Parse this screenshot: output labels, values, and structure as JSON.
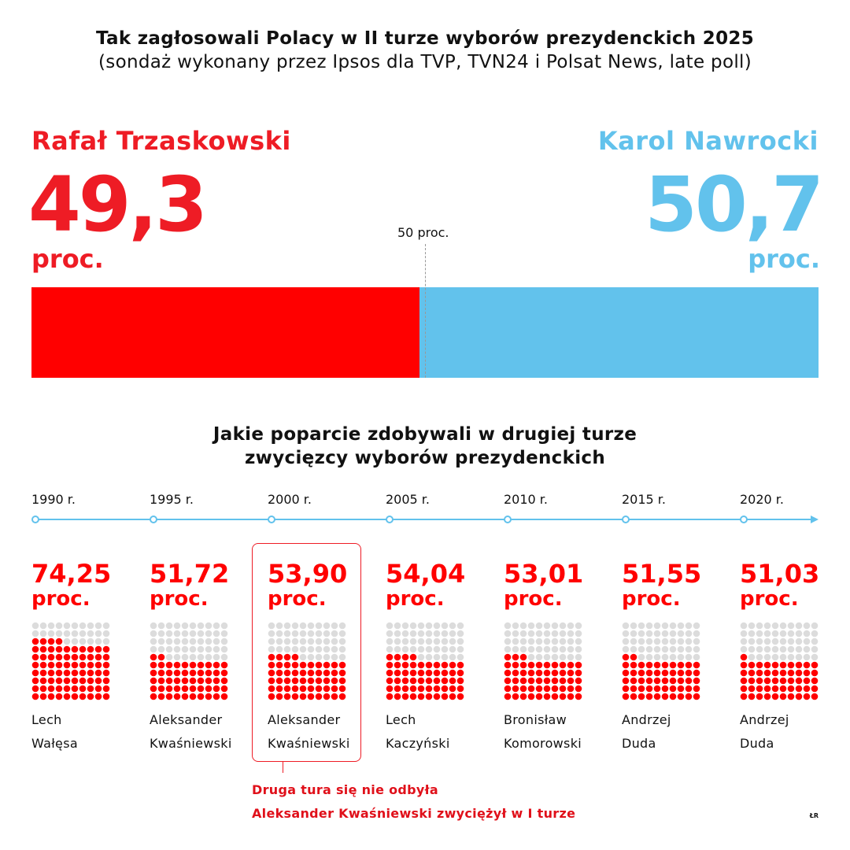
{
  "title": "Tak zagłosowali Polacy w II turze wyborów prezydenckich 2025",
  "subtitle": "(sondaż wykonany przez Ipsos dla TVP, TVN24 i Polsat News, late poll)",
  "chart_data": [
    {
      "type": "bar",
      "orientation": "horizontal-stacked",
      "series": [
        {
          "name": "Rafał Trzaskowski",
          "value": 49.3,
          "value_label": "49,3",
          "unit": "proc.",
          "color": "#ff0000"
        },
        {
          "name": "Karol Nawrocki",
          "value": 50.7,
          "value_label": "50,7",
          "unit": "proc.",
          "color": "#62c2ec"
        }
      ],
      "reference_line": {
        "value": 50,
        "label": "50 proc."
      },
      "xlim": [
        0,
        100
      ]
    },
    {
      "type": "waffle",
      "title_line1": "Jakie poparcie zdobywali w drugiej turze",
      "title_line2": "zwycięzcy wyborów prezydenckich",
      "grid": "10x10",
      "filled_color": "#ff0000",
      "empty_color": "#dcdcdc",
      "unit": "proc.",
      "items": [
        {
          "year": "1990 r.",
          "value": 74.25,
          "label": "74,25",
          "first": "Lech",
          "last": "Wałęsa"
        },
        {
          "year": "1995 r.",
          "value": 51.72,
          "label": "51,72",
          "first": "Aleksander",
          "last": "Kwaśniewski"
        },
        {
          "year": "2000 r.",
          "value": 53.9,
          "label": "53,90",
          "first": "Aleksander",
          "last": "Kwaśniewski",
          "highlighted": true
        },
        {
          "year": "2005 r.",
          "value": 54.04,
          "label": "54,04",
          "first": "Lech",
          "last": "Kaczyński"
        },
        {
          "year": "2010 r.",
          "value": 53.01,
          "label": "53,01",
          "first": "Bronisław",
          "last": "Komorowski"
        },
        {
          "year": "2015 r.",
          "value": 51.55,
          "label": "51,55",
          "first": "Andrzej",
          "last": "Duda"
        },
        {
          "year": "2020 r.",
          "value": 51.03,
          "label": "51,03",
          "first": "Andrzej",
          "last": "Duda"
        }
      ],
      "note_line1": "Druga tura się nie odbyła",
      "note_line2": "Aleksander Kwaśniewski zwyciężył w I turze"
    }
  ],
  "credit": "ŁR"
}
